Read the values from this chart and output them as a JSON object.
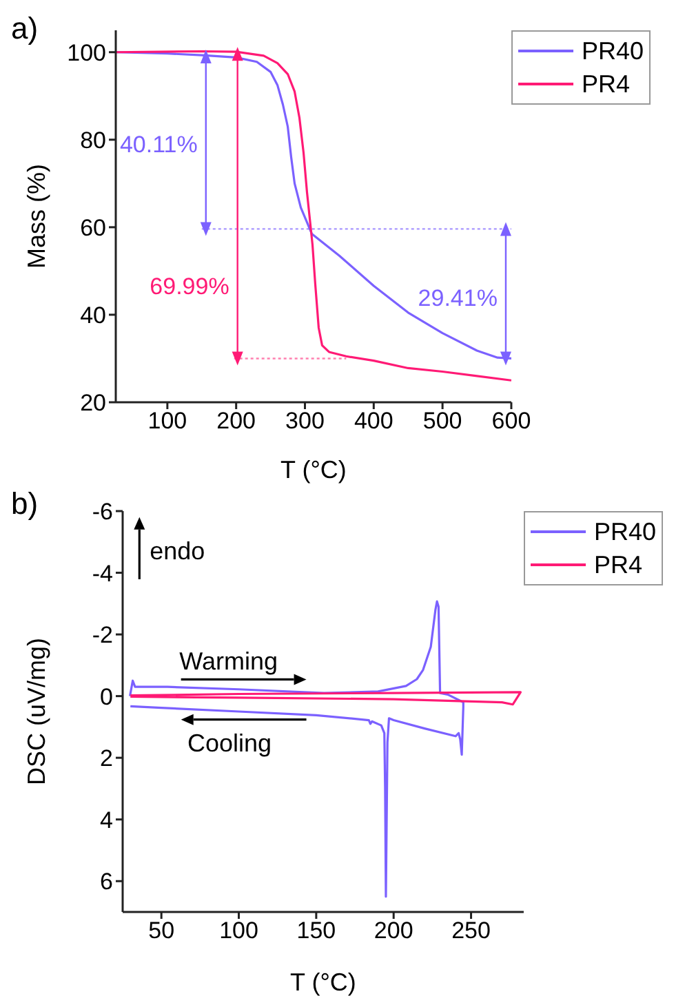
{
  "chart_data": [
    {
      "type": "line",
      "title": "a)",
      "xlabel": "T (°C)",
      "ylabel": "Mass (%)",
      "xlim": [
        25,
        600
      ],
      "xticks": [
        100,
        200,
        300,
        400,
        500,
        600
      ],
      "ylim": [
        20,
        105
      ],
      "yticks": [
        20,
        40,
        60,
        80,
        100
      ],
      "legend": "top right",
      "series": [
        {
          "name": "PR40",
          "color": "#7b61ff",
          "x": [
            25,
            100,
            150,
            200,
            230,
            250,
            260,
            268,
            275,
            280,
            285,
            294,
            310,
            350,
            400,
            450,
            500,
            550,
            580,
            600
          ],
          "values": [
            100,
            99.7,
            99.3,
            98.8,
            97.8,
            95.5,
            92.5,
            88,
            83,
            76,
            70,
            64.5,
            58.5,
            53.5,
            46.6,
            40.5,
            35.8,
            31.8,
            30.2,
            30
          ]
        },
        {
          "name": "PR4",
          "color": "#ff1a75",
          "x": [
            25,
            150,
            200,
            240,
            260,
            275,
            285,
            292,
            298,
            303,
            307,
            311,
            315,
            320,
            325,
            335,
            360,
            400,
            450,
            500,
            550,
            600
          ],
          "values": [
            100,
            100.2,
            100.1,
            99.2,
            97.5,
            95,
            91,
            85,
            77,
            68,
            62,
            56,
            47,
            37,
            33,
            31.5,
            30.5,
            29.5,
            27.8,
            27,
            26,
            25
          ]
        },
        {
          "color": "#a896ff",
          "line_style": "dotted",
          "x": [
            150,
            600
          ],
          "values": [
            59.6,
            59.6
          ]
        },
        {
          "color": "#ff80b0",
          "line_style": "dotted",
          "x": [
            197,
            360
          ],
          "values": [
            30,
            30
          ]
        },
        {
          "color": "#7b61ff",
          "marker": "triangle",
          "x": [
            156,
            156
          ],
          "values": [
            99,
            59.6
          ]
        },
        {
          "color": "#ff1a75",
          "marker": "triangle",
          "x": [
            202,
            202
          ],
          "values": [
            99.6,
            30
          ]
        },
        {
          "color": "#7b61ff",
          "marker": "triangle",
          "x": [
            592,
            592
          ],
          "values": [
            59.6,
            30
          ]
        }
      ],
      "annotations": [
        {
          "text": "40.11%",
          "x": 156,
          "y": 79
        },
        {
          "text": "69.99%",
          "x": 202,
          "y": 46.6
        },
        {
          "text": "29.41%",
          "x": 592,
          "y": 44
        }
      ]
    },
    {
      "type": "line",
      "title": "b)",
      "xlabel": "T (°C)",
      "ylabel": "DSC (uV/mg)",
      "xlim": [
        25,
        284
      ],
      "xticks": [
        50,
        100,
        150,
        200,
        250
      ],
      "ylim": [
        7,
        -6
      ],
      "yticks": [
        -6,
        -4,
        -2,
        0,
        2,
        4,
        6
      ],
      "legend": "top right",
      "series": [
        {
          "name": "PR40",
          "color": "#7b61ff",
          "x": [
            29.7,
            31.5,
            33,
            54,
            100,
            155,
            190,
            208,
            215,
            219,
            224,
            227,
            228,
            229,
            230,
            235,
            245,
            245,
            244,
            243,
            242,
            240,
            220,
            200,
            197,
            196,
            195.5,
            195,
            194.5,
            194,
            192,
            186,
            185,
            184,
            150,
            100,
            50,
            30
          ],
          "values": [
            0,
            -0.5,
            -0.3,
            -0.3,
            -0.22,
            -0.1,
            -0.15,
            -0.33,
            -0.55,
            -0.85,
            -1.6,
            -2.8,
            -3.07,
            -2.9,
            -0.1,
            -0.05,
            0.2,
            0.35,
            1.9,
            1.4,
            1.2,
            1.3,
            1.05,
            0.78,
            0.72,
            1.5,
            4,
            6.5,
            3,
            1.2,
            0.95,
            0.82,
            0.9,
            0.78,
            0.62,
            0.5,
            0.38,
            0.33
          ]
        },
        {
          "name": "PR4",
          "color": "#ff1a75",
          "x": [
            30,
            100,
            200,
            282,
            277,
            270,
            200,
            100,
            30
          ],
          "values": [
            -0.02,
            -0.07,
            -0.1,
            -0.13,
            0.27,
            0.2,
            0.1,
            0.05,
            0.02
          ]
        }
      ],
      "annotations": [
        "endo",
        "Warming",
        "Cooling"
      ]
    }
  ]
}
